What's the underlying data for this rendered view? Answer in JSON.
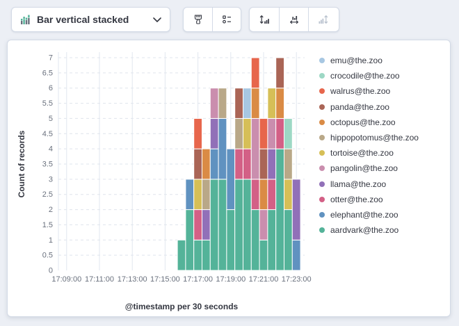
{
  "toolbar": {
    "chart_type_label": "Bar vertical stacked",
    "icons": {
      "chart_type": "stacked-bar-chart-icon",
      "dropdown": "chevron-down-icon",
      "style_group": [
        "brush-icon",
        "list-options-icon"
      ],
      "axes_group": [
        "expand-vertical-bars-icon",
        "expand-horizontal-bars-icon",
        "bars-vertical-arrow-icon-disabled"
      ]
    }
  },
  "colors": {
    "page_bg": "#eceff5",
    "panel_border": "#d3dae6",
    "text_dark": "#343741",
    "text_muted": "#69707d",
    "grid_dash": "#dfe4ec",
    "grid_solid": "#e2e7ef"
  },
  "chart_data": {
    "type": "bar",
    "stacked": true,
    "orientation": "vertical",
    "xlabel": "@timestamp per 30 seconds",
    "ylabel": "Count of records",
    "ylim": [
      0,
      7
    ],
    "y_tick_step": 0.5,
    "x_domain": [
      "17:08:30",
      "17:23:30"
    ],
    "x_ticks": [
      "17:09:00",
      "17:11:00",
      "17:13:00",
      "17:15:00",
      "17:17:00",
      "17:19:00",
      "17:21:00",
      "17:23:00"
    ],
    "bucket_seconds": 30,
    "legend_position": "right",
    "legend_order": "reversed",
    "categories": [
      "17:16:00",
      "17:16:30",
      "17:17:00",
      "17:17:30",
      "17:18:00",
      "17:18:30",
      "17:19:00",
      "17:19:30",
      "17:20:00",
      "17:20:30",
      "17:21:00",
      "17:21:30",
      "17:22:00",
      "17:22:30",
      "17:23:00"
    ],
    "series": [
      {
        "name": "aardvark@the.zoo",
        "color": "#54B399",
        "values": [
          1,
          2,
          1,
          1,
          3,
          3,
          2,
          3,
          3,
          2,
          1,
          2,
          4,
          2,
          0
        ]
      },
      {
        "name": "elephant@the.zoo",
        "color": "#6092C0",
        "values": [
          0,
          1,
          0,
          0,
          1,
          2,
          2,
          0,
          0,
          0,
          0,
          0,
          0,
          0,
          1
        ]
      },
      {
        "name": "otter@the.zoo",
        "color": "#D36086",
        "values": [
          0,
          0,
          1,
          0,
          0,
          0,
          0,
          1,
          1,
          1,
          0,
          1,
          1,
          0,
          0
        ]
      },
      {
        "name": "llama@the.zoo",
        "color": "#9170B8",
        "values": [
          0,
          0,
          0,
          1,
          1,
          0,
          0,
          0,
          0,
          0,
          0,
          1,
          0,
          0,
          2
        ]
      },
      {
        "name": "pangolin@the.zoo",
        "color": "#CA8EAE",
        "values": [
          0,
          0,
          0,
          0,
          1,
          0,
          0,
          0,
          0,
          2,
          1,
          1,
          0,
          0,
          0
        ]
      },
      {
        "name": "tortoise@the.zoo",
        "color": "#D6BF57",
        "values": [
          0,
          0,
          1,
          0,
          0,
          0,
          0,
          0,
          1,
          0,
          0,
          1,
          0,
          1,
          0
        ]
      },
      {
        "name": "hippopotomus@the.zoo",
        "color": "#B9A888",
        "values": [
          0,
          0,
          0,
          1,
          0,
          1,
          0,
          1,
          0,
          0,
          0,
          0,
          0,
          1,
          0
        ]
      },
      {
        "name": "octopus@the.zoo",
        "color": "#DA8B45",
        "values": [
          0,
          0,
          0,
          1,
          0,
          0,
          0,
          0,
          0,
          1,
          1,
          0,
          1,
          0,
          0
        ]
      },
      {
        "name": "panda@the.zoo",
        "color": "#AA6556",
        "values": [
          0,
          0,
          1,
          0,
          0,
          0,
          0,
          1,
          0,
          0,
          1,
          0,
          1,
          0,
          0
        ]
      },
      {
        "name": "walrus@the.zoo",
        "color": "#E7664C",
        "values": [
          0,
          0,
          1,
          0,
          0,
          0,
          0,
          0,
          0,
          1,
          1,
          0,
          0,
          0,
          0
        ]
      },
      {
        "name": "crocodile@the.zoo",
        "color": "#9DD8C5",
        "values": [
          0,
          0,
          0,
          0,
          0,
          0,
          0,
          0,
          0,
          0,
          0,
          0,
          0,
          1,
          0
        ]
      },
      {
        "name": "emu@the.zoo",
        "color": "#A7C7E2",
        "values": [
          0,
          0,
          0,
          0,
          0,
          0,
          0,
          0,
          1,
          0,
          0,
          0,
          0,
          0,
          0
        ]
      }
    ]
  }
}
